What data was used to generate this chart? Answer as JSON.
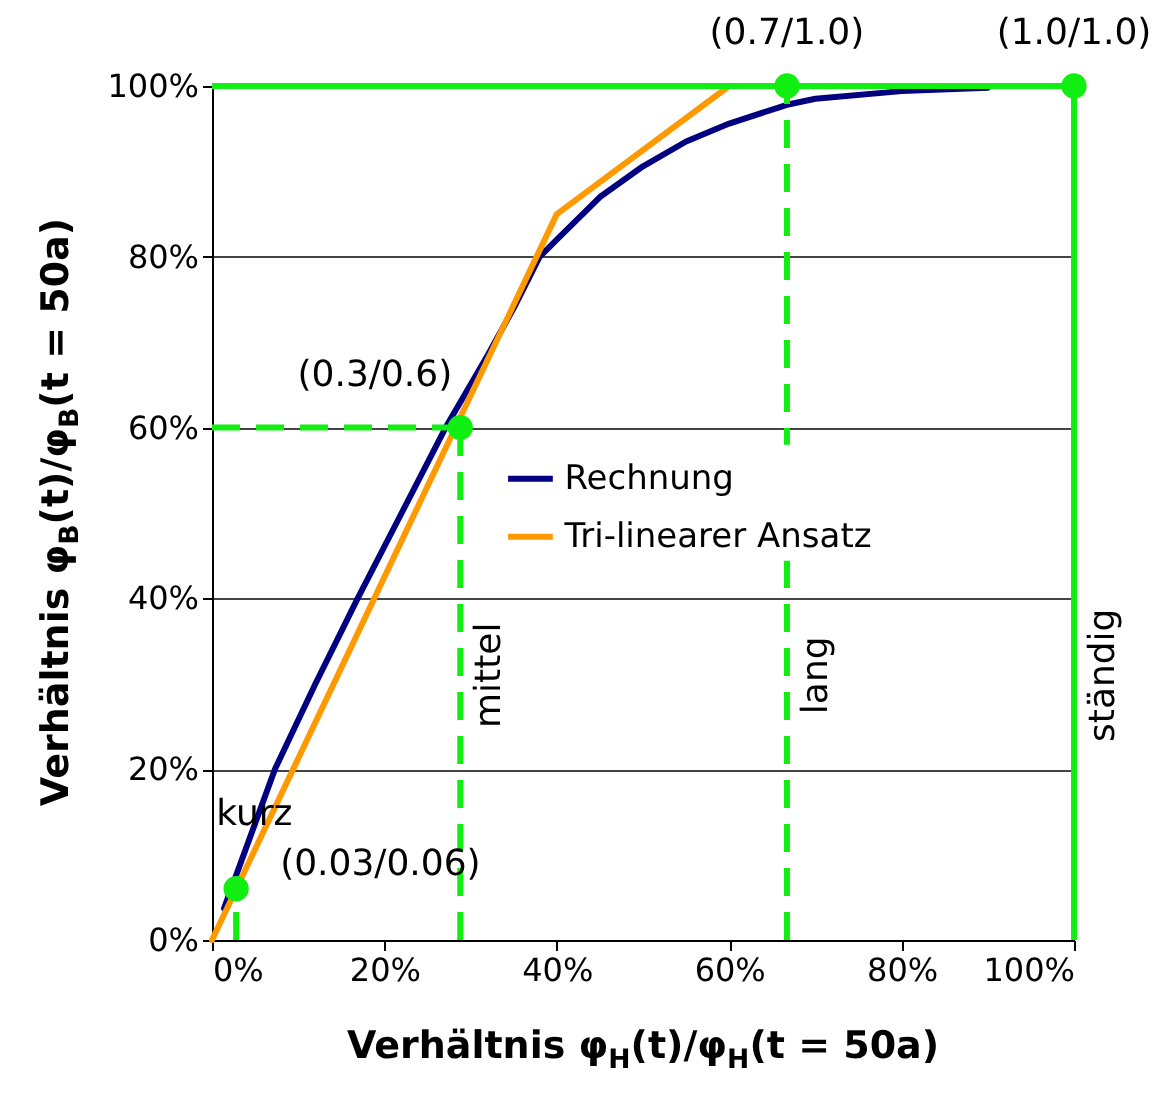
{
  "chart_data": {
    "type": "line",
    "xlabel": "Verhältnis φ$_{H}$(t)/φ$_{H}$(t = 50a)",
    "ylabel": "Verhältnis φ$_{B}$(t)/φ$_{B}$(t = 50a)",
    "series": [
      {
        "name": "Rechnung",
        "color": "#000080",
        "x": [
          1.4,
          7.3,
          12,
          16.9,
          22,
          27.1,
          32,
          35,
          38,
          40,
          45,
          50,
          55,
          60,
          66.7,
          70,
          80,
          90
        ],
        "values": [
          3.7,
          20,
          30,
          40,
          50,
          60,
          68.5,
          74,
          80,
          82,
          87,
          90.6,
          93.5,
          95.6,
          97.8,
          98.5,
          99.4,
          99.8
        ]
      },
      {
        "name": "Tri-linearer Ansatz",
        "color": "#ff9900",
        "x": [
          0,
          40,
          60
        ],
        "values": [
          0,
          85,
          100
        ]
      },
      {
        "type": "scatter",
        "color": "#11ee11",
        "x": [
          2.8,
          28.8,
          66.7,
          100
        ],
        "values": [
          6,
          60,
          100,
          100
        ]
      }
    ],
    "xlim": [
      0,
      100
    ],
    "ylim": [
      0,
      100
    ],
    "xticks": [
      {
        "value": 0,
        "label": "0%"
      },
      {
        "value": 20,
        "label": "20%"
      },
      {
        "value": 40,
        "label": "40%"
      },
      {
        "value": 60,
        "label": "60%"
      },
      {
        "value": 80,
        "label": "80%"
      },
      {
        "value": 100,
        "label": "100%"
      }
    ],
    "yticks": [
      {
        "value": 0,
        "label": "0%"
      },
      {
        "value": 20,
        "label": "20%"
      },
      {
        "value": 40,
        "label": "40%"
      },
      {
        "value": 60,
        "label": "60%"
      },
      {
        "value": 80,
        "label": "80%"
      },
      {
        "value": 100,
        "label": "100%"
      }
    ],
    "grid": "y",
    "legend": "center",
    "ref_lines": [
      {
        "axis": "x",
        "value": 2.8,
        "label": "kurz",
        "color": "#11ee11",
        "line_style": "dashed"
      },
      {
        "axis": "x",
        "value": 28.8,
        "label": "mittel",
        "color": "#11ee11",
        "line_style": "dashed"
      },
      {
        "axis": "x",
        "value": 66.7,
        "label": "lang",
        "color": "#11ee11",
        "line_style": "dashed"
      },
      {
        "axis": "x",
        "value": 100,
        "label": "ständig",
        "color": "#11ee11",
        "line_style": "solid"
      },
      {
        "axis": "y",
        "value": 60,
        "color": "#11ee11",
        "line_style": "dashed"
      },
      {
        "axis": "y",
        "value": 100,
        "color": "#11ee11",
        "line_style": "solid"
      }
    ],
    "annotations": [
      {
        "text": "(0.03/0.06)",
        "x": 2.8,
        "y": 6
      },
      {
        "text": "(0.3/0.6)",
        "x": 28.8,
        "y": 60
      },
      {
        "text": "(0.7/1.0)",
        "x": 66.7,
        "y": 100
      },
      {
        "text": "(1.0/1.0)",
        "x": 100,
        "y": 100
      }
    ]
  }
}
